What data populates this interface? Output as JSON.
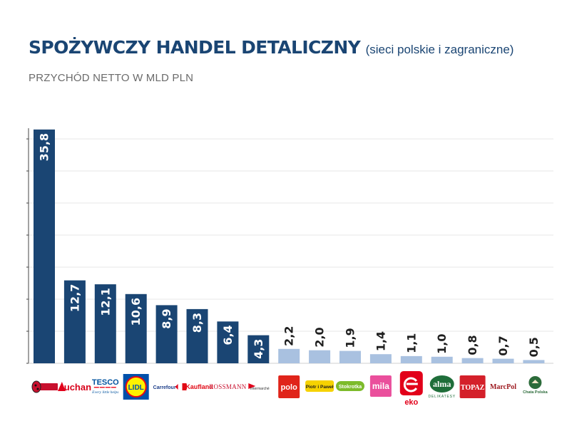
{
  "chart_data": {
    "type": "bar",
    "title": "SPOŻYWCZY HANDEL DETALICZNY",
    "title_note": "(sieci polskie i zagraniczne)",
    "subtitle": "PRZYCHÓD NETTO W MLD PLN",
    "xlabel": "",
    "ylabel": "",
    "ylim": [
      0,
      36
    ],
    "categories": [
      "Biedronka",
      "Auchan",
      "TESCO",
      "LIDL",
      "Carrefour",
      "Kaufland",
      "ROSSMANN",
      "Intermarché",
      "polo",
      "Piotr i Paweł",
      "Stokrotka",
      "mila",
      "eko",
      "alma",
      "TOPAZ",
      "MarcPol",
      "Chata Polska"
    ],
    "values": [
      35.8,
      12.7,
      12.1,
      10.6,
      8.9,
      8.3,
      6.4,
      4.3,
      2.2,
      2.0,
      1.9,
      1.4,
      1.1,
      1.0,
      0.8,
      0.7,
      0.5
    ],
    "labels": [
      "35,8",
      "12,7",
      "12,1",
      "10,6",
      "8,9",
      "8,3",
      "6,4",
      "4,3",
      "2,2",
      "2,0",
      "1,9",
      "1,4",
      "1,1",
      "1,0",
      "0,8",
      "0,7",
      "0,5"
    ],
    "logo_text": {
      "auchan": "Auchan",
      "tesco": "TESCO",
      "tesco_tagline": "Every little helps",
      "lidl": "LIDL",
      "carrefour": "Carrefour",
      "kaufland": "Kaufland",
      "rossmann": "ROSSMANN",
      "intermarche": "Intermarché",
      "polo": "polo",
      "piotr": "Piotr i Paweł",
      "stokrotka": "Stokrotka",
      "mila": "mila",
      "eko": "eko",
      "alma": "alma",
      "alma_sub": "DELIKATESY",
      "topaz": "TOPAZ",
      "marcpol": "MarcPol",
      "chata": "Chata Polska"
    },
    "grid": true,
    "colors": {
      "polish_bar": "#1a4573",
      "foreign_bar": "#a9c1e0",
      "grid": "#e7e7e7",
      "axis": "#444444",
      "label_dark": "#ffffff",
      "label_light": "#1e1e1e"
    },
    "highlight_count": 8
  }
}
